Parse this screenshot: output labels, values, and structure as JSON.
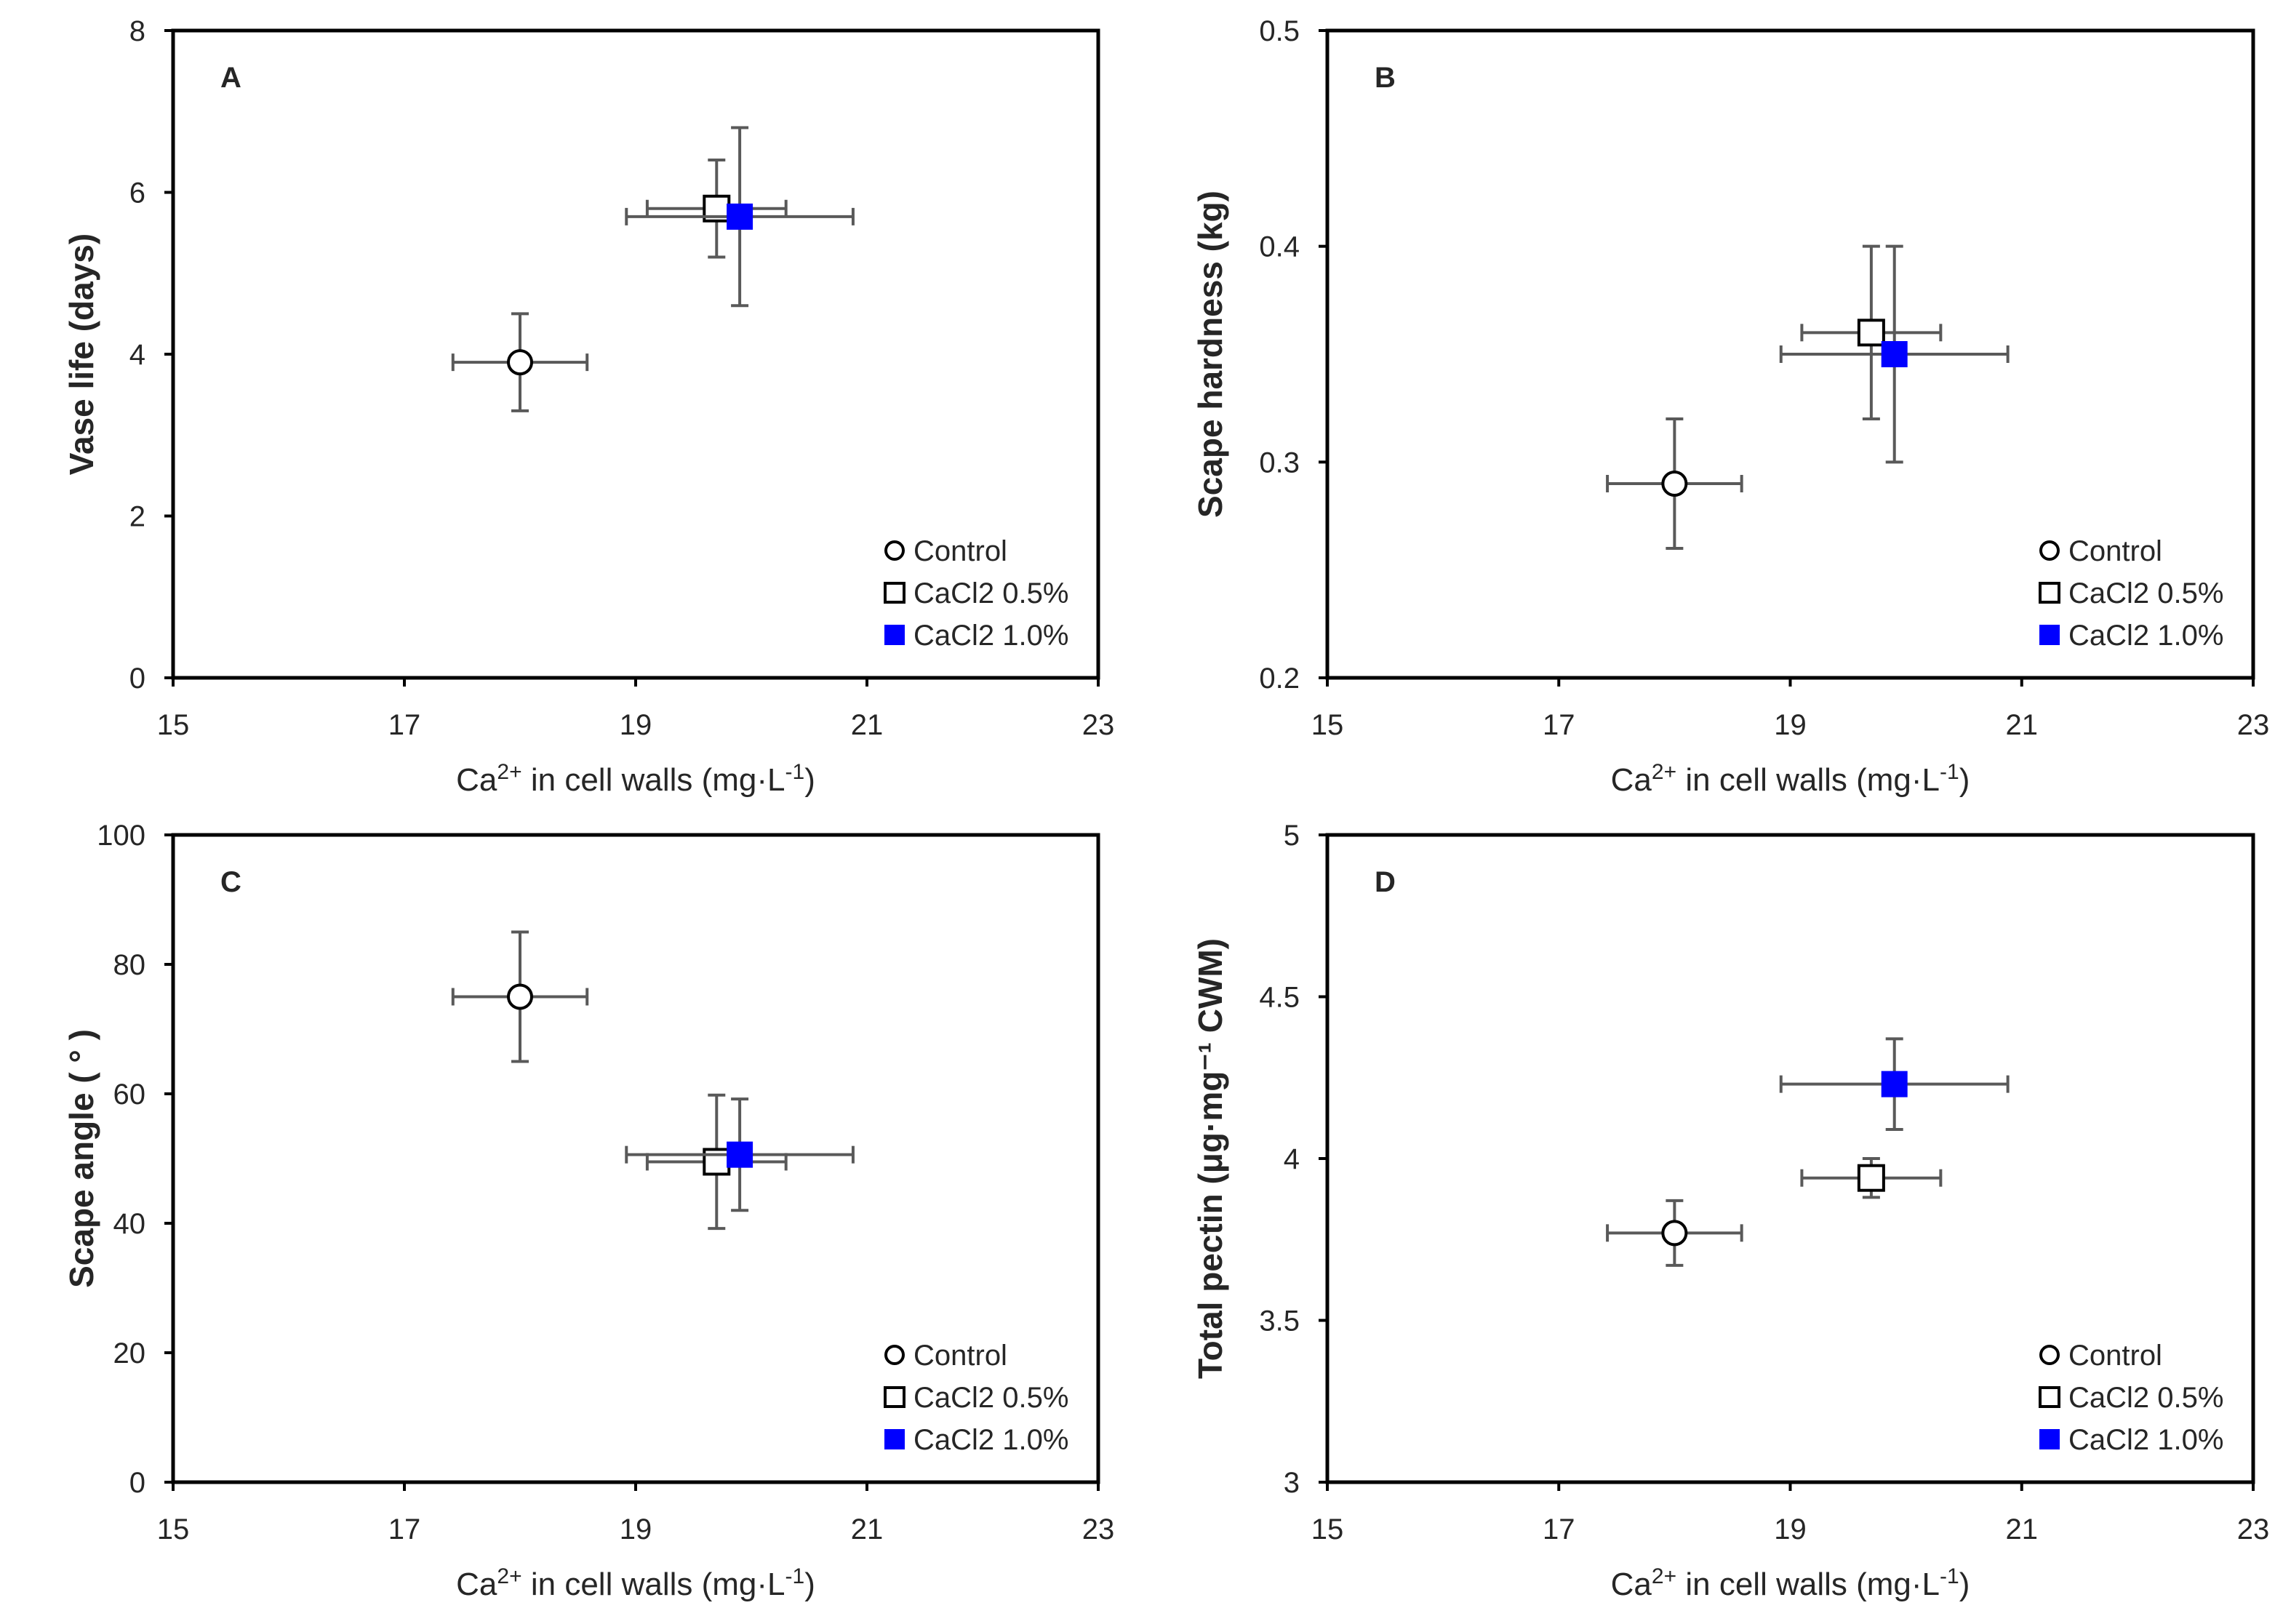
{
  "colors": {
    "filled_marker": "#0000ff",
    "hollow_marker": "#ffffff",
    "error_bar": "#595959",
    "axis": "#000000"
  },
  "chart_data": [
    {
      "type": "scatter",
      "panel": "A",
      "xlabel": {
        "pre": "Ca",
        "sup": "2+",
        "mid": " in cell walls (mg·L",
        "sup2": "-1",
        "post": ")"
      },
      "ylabel": "Vase life (days)",
      "xlim": [
        15,
        23
      ],
      "ylim": [
        0,
        8
      ],
      "xticks": [
        "15",
        "17",
        "19",
        "21",
        "23"
      ],
      "yticks": [
        "0",
        "2",
        "4",
        "6",
        "8"
      ],
      "legend": [
        "Control",
        "CaCl2 0.5%",
        "CaCl2 1.0%"
      ],
      "legend_position": "bottom-right",
      "series": [
        {
          "name": "Control",
          "marker": "circle-open",
          "x": 18.0,
          "y": 3.9,
          "xerr": 0.58,
          "yerr": 0.6
        },
        {
          "name": "CaCl2 0.5%",
          "marker": "square-open",
          "x": 19.7,
          "y": 5.8,
          "xerr": 0.6,
          "yerr": 0.6
        },
        {
          "name": "CaCl2 1.0%",
          "marker": "square-filled",
          "x": 19.9,
          "y": 5.7,
          "xerr": 0.98,
          "yerr": 1.1
        }
      ]
    },
    {
      "type": "scatter",
      "panel": "B",
      "xlabel": {
        "pre": "Ca",
        "sup": "2+",
        "mid": " in cell walls (mg·L",
        "sup2": "-1",
        "post": ")"
      },
      "ylabel": "Scape hardness (kg)",
      "xlim": [
        15,
        23
      ],
      "ylim": [
        0.2,
        0.5
      ],
      "xticks": [
        "15",
        "17",
        "19",
        "21",
        "23"
      ],
      "yticks": [
        "0.2",
        "0.3",
        "0.4",
        "0.5"
      ],
      "legend": [
        "Control",
        "CaCl2 0.5%",
        "CaCl2 1.0%"
      ],
      "legend_position": "bottom-right",
      "series": [
        {
          "name": "Control",
          "marker": "circle-open",
          "x": 18.0,
          "y": 0.29,
          "xerr": 0.58,
          "yerr": 0.03
        },
        {
          "name": "CaCl2 0.5%",
          "marker": "square-open",
          "x": 19.7,
          "y": 0.36,
          "xerr": 0.6,
          "yerr": 0.04
        },
        {
          "name": "CaCl2 1.0%",
          "marker": "square-filled",
          "x": 19.9,
          "y": 0.35,
          "xerr": 0.98,
          "yerr": 0.05
        }
      ]
    },
    {
      "type": "scatter",
      "panel": "C",
      "xlabel": {
        "pre": "Ca",
        "sup": "2+",
        "mid": " in cell walls (mg·L",
        "sup2": "-1",
        "post": ")"
      },
      "ylabel": "Scape angle (  °  )",
      "xlim": [
        15,
        23
      ],
      "ylim": [
        0,
        100
      ],
      "xticks": [
        "15",
        "17",
        "19",
        "21",
        "23"
      ],
      "yticks": [
        "0",
        "20",
        "40",
        "60",
        "80",
        "100"
      ],
      "legend": [
        "Control",
        "CaCl2 0.5%",
        "CaCl2 1.0%"
      ],
      "legend_position": "bottom-right",
      "series": [
        {
          "name": "Control",
          "marker": "circle-open",
          "x": 18.0,
          "y": 75,
          "xerr": 0.58,
          "yerr": 10
        },
        {
          "name": "CaCl2 0.5%",
          "marker": "square-open",
          "x": 19.7,
          "y": 49.5,
          "xerr": 0.6,
          "yerr": 10.3
        },
        {
          "name": "CaCl2 1.0%",
          "marker": "square-filled",
          "x": 19.9,
          "y": 50.6,
          "xerr": 0.98,
          "yerr": 8.6
        }
      ]
    },
    {
      "type": "scatter",
      "panel": "D",
      "xlabel": {
        "pre": "Ca",
        "sup": "2+",
        "mid": " in cell walls (mg·L",
        "sup2": "-1",
        "post": ")"
      },
      "ylabel": "Total pectin (μg·mg⁻¹ CWM)",
      "xlim": [
        15,
        23
      ],
      "ylim": [
        3,
        5
      ],
      "xticks": [
        "15",
        "17",
        "19",
        "21",
        "23"
      ],
      "yticks": [
        "3",
        "3.5",
        "4",
        "4.5",
        "5"
      ],
      "legend": [
        "Control",
        "CaCl2 0.5%",
        "CaCl2 1.0%"
      ],
      "legend_position": "bottom-right",
      "series": [
        {
          "name": "Control",
          "marker": "circle-open",
          "x": 18.0,
          "y": 3.77,
          "xerr": 0.58,
          "yerr": 0.1
        },
        {
          "name": "CaCl2 0.5%",
          "marker": "square-open",
          "x": 19.7,
          "y": 3.94,
          "xerr": 0.6,
          "yerr": 0.06
        },
        {
          "name": "CaCl2 1.0%",
          "marker": "square-filled",
          "x": 19.9,
          "y": 4.23,
          "xerr": 0.98,
          "yerr": 0.14
        }
      ]
    }
  ]
}
